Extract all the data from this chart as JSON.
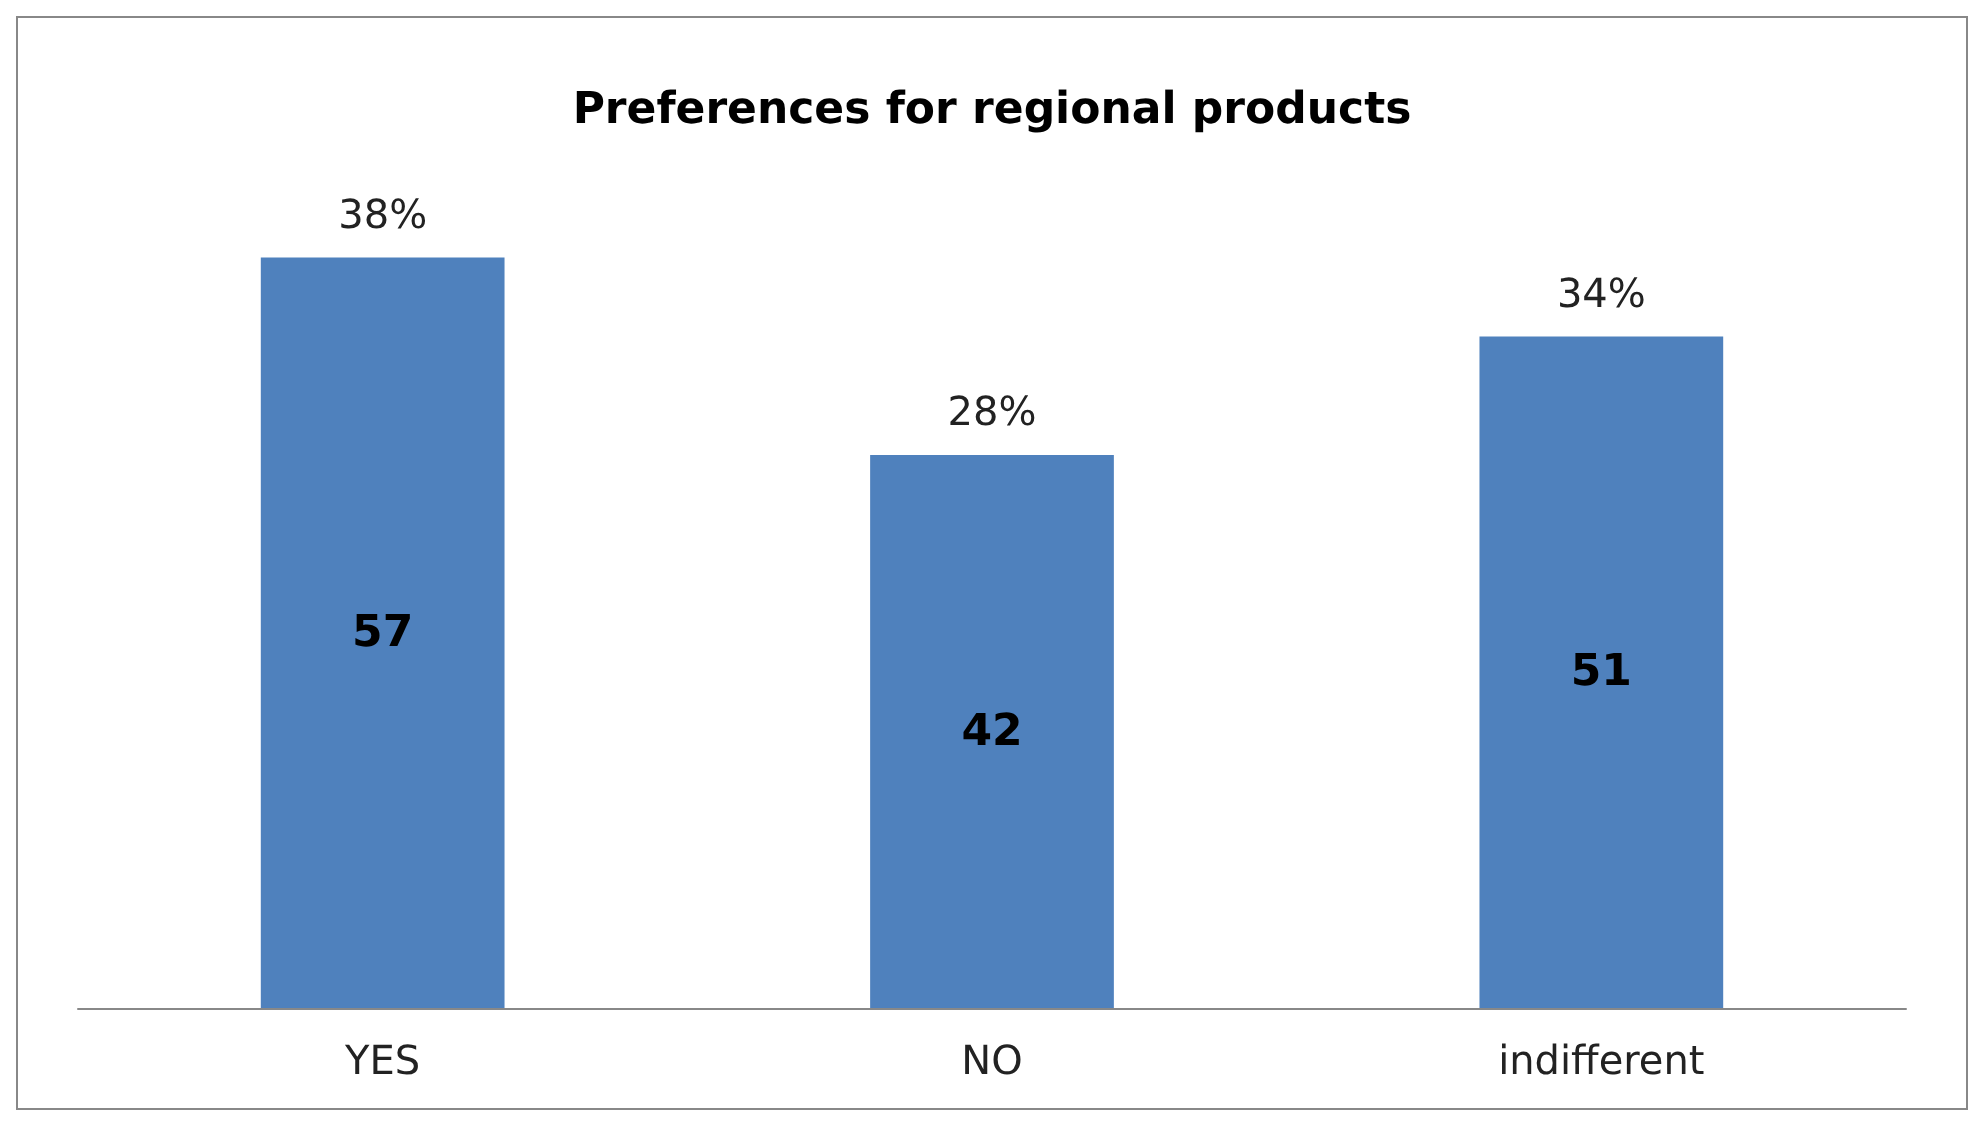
{
  "chart_data": {
    "type": "bar",
    "title": "Preferences for regional products",
    "categories": [
      "YES",
      "NO",
      "indifferent"
    ],
    "values": [
      57,
      42,
      51
    ],
    "color": "#4f81bd",
    "data_labels": true,
    "annotations": [
      {
        "text": "38%",
        "x": "YES",
        "y": 57
      },
      {
        "text": "28%",
        "x": "NO",
        "y": 42
      },
      {
        "text": "34%",
        "x": "indifferent",
        "y": 51
      }
    ]
  }
}
